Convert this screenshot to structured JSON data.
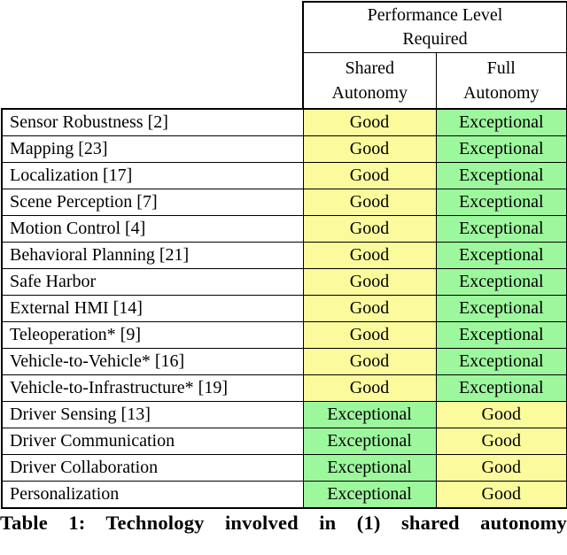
{
  "table": {
    "header": {
      "title_line1": "Performance Level",
      "title_line2": "Required",
      "shared_line1": "Shared",
      "shared_line2": "Autonomy",
      "full_line1": "Full",
      "full_line2": "Autonomy"
    },
    "levels": {
      "good": "Good",
      "exceptional": "Exceptional"
    },
    "colors": {
      "good_bg": "#fbfb9e",
      "exceptional_bg": "#9df89d",
      "border": "#000000"
    },
    "rows": [
      {
        "label": "Sensor Robustness [2]",
        "shared": "Good",
        "full": "Exceptional"
      },
      {
        "label": "Mapping [23]",
        "shared": "Good",
        "full": "Exceptional"
      },
      {
        "label": "Localization [17]",
        "shared": "Good",
        "full": "Exceptional"
      },
      {
        "label": "Scene Perception [7]",
        "shared": "Good",
        "full": "Exceptional"
      },
      {
        "label": "Motion Control [4]",
        "shared": "Good",
        "full": "Exceptional"
      },
      {
        "label": "Behavioral Planning [21]",
        "shared": "Good",
        "full": "Exceptional"
      },
      {
        "label": "Safe Harbor",
        "shared": "Good",
        "full": "Exceptional"
      },
      {
        "label": "External HMI [14]",
        "shared": "Good",
        "full": "Exceptional"
      },
      {
        "label": "Teleoperation* [9]",
        "shared": "Good",
        "full": "Exceptional"
      },
      {
        "label": "Vehicle-to-Vehicle* [16]",
        "shared": "Good",
        "full": "Exceptional"
      },
      {
        "label": "Vehicle-to-Infrastructure* [19]",
        "shared": "Good",
        "full": "Exceptional"
      },
      {
        "label": "Driver Sensing [13]",
        "shared": "Exceptional",
        "full": "Good"
      },
      {
        "label": "Driver Communication",
        "shared": "Exceptional",
        "full": "Good"
      },
      {
        "label": "Driver Collaboration",
        "shared": "Exceptional",
        "full": "Good"
      },
      {
        "label": "Personalization",
        "shared": "Exceptional",
        "full": "Good"
      }
    ]
  },
  "caption": "Table 1: Technology involved in (1) shared autonomy"
}
